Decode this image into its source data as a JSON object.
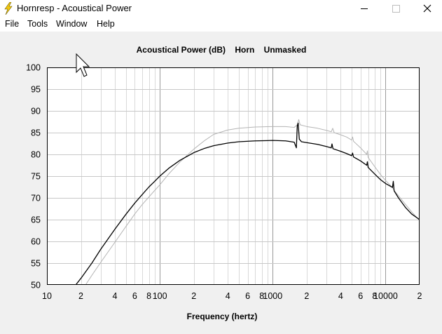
{
  "window": {
    "title": "Hornresp - Acoustical Power",
    "app_icon": "lightning-icon",
    "controls": [
      "minimize-icon",
      "maximize-icon",
      "close-icon"
    ]
  },
  "menu": {
    "items": [
      "File",
      "Tools",
      "Window",
      "Help"
    ]
  },
  "chart_data": {
    "type": "line",
    "title": "Acoustical Power (dB)    Horn    Unmasked",
    "xlabel": "Frequency (hertz)",
    "ylabel": "",
    "xscale": "log",
    "xlim": [
      10,
      20000
    ],
    "ylim": [
      50,
      100
    ],
    "grid": true,
    "x_tick_labels": [
      {
        "value": 10,
        "label": "10"
      },
      {
        "value": 20,
        "label": "2"
      },
      {
        "value": 40,
        "label": "4"
      },
      {
        "value": 60,
        "label": "6"
      },
      {
        "value": 80,
        "label": "8"
      },
      {
        "value": 100,
        "label": "100"
      },
      {
        "value": 200,
        "label": "2"
      },
      {
        "value": 400,
        "label": "4"
      },
      {
        "value": 600,
        "label": "6"
      },
      {
        "value": 800,
        "label": "8"
      },
      {
        "value": 1000,
        "label": "1000"
      },
      {
        "value": 2000,
        "label": "2"
      },
      {
        "value": 4000,
        "label": "4"
      },
      {
        "value": 6000,
        "label": "6"
      },
      {
        "value": 8000,
        "label": "8"
      },
      {
        "value": 10000,
        "label": "10000"
      },
      {
        "value": 20000,
        "label": "2"
      }
    ],
    "y_ticks": [
      50,
      55,
      60,
      65,
      70,
      75,
      80,
      85,
      90,
      95,
      100
    ],
    "series": [
      {
        "color": "#000000",
        "points": [
          [
            18,
            50
          ],
          [
            20,
            51.5
          ],
          [
            25,
            55
          ],
          [
            30,
            58.2
          ],
          [
            40,
            62.8
          ],
          [
            50,
            66.2
          ],
          [
            60,
            68.8
          ],
          [
            70,
            70.8
          ],
          [
            80,
            72.5
          ],
          [
            90,
            73.8
          ],
          [
            100,
            75
          ],
          [
            120,
            76.8
          ],
          [
            150,
            78.6
          ],
          [
            200,
            80.4
          ],
          [
            250,
            81.4
          ],
          [
            300,
            82
          ],
          [
            400,
            82.6
          ],
          [
            500,
            82.9
          ],
          [
            700,
            83.1
          ],
          [
            1000,
            83.2
          ],
          [
            1300,
            83.1
          ],
          [
            1550,
            82.8
          ],
          [
            1620,
            81.5
          ],
          [
            1650,
            86.5
          ],
          [
            1680,
            87.2
          ],
          [
            1720,
            83.5
          ],
          [
            1800,
            82.9
          ],
          [
            2000,
            82.7
          ],
          [
            2500,
            82.3
          ],
          [
            3000,
            81.8
          ],
          [
            3300,
            81.5
          ],
          [
            3350,
            82.4
          ],
          [
            3420,
            81.3
          ],
          [
            4000,
            80.7
          ],
          [
            4500,
            80.2
          ],
          [
            5000,
            79.7
          ],
          [
            5100,
            80.3
          ],
          [
            5200,
            79.4
          ],
          [
            6000,
            78.5
          ],
          [
            6800,
            77.5
          ],
          [
            6900,
            78.3
          ],
          [
            7000,
            77
          ],
          [
            8000,
            75.5
          ],
          [
            9000,
            74.2
          ],
          [
            10000,
            73.3
          ],
          [
            11500,
            72.4
          ],
          [
            11700,
            73.8
          ],
          [
            11900,
            71.6
          ],
          [
            13000,
            70
          ],
          [
            15000,
            67.8
          ],
          [
            17000,
            66.3
          ],
          [
            20000,
            65
          ]
        ]
      },
      {
        "color": "#b4b4b4",
        "points": [
          [
            22,
            50
          ],
          [
            25,
            52.2
          ],
          [
            30,
            55.2
          ],
          [
            40,
            59.8
          ],
          [
            50,
            63.4
          ],
          [
            60,
            66.3
          ],
          [
            70,
            68.5
          ],
          [
            80,
            70.2
          ],
          [
            90,
            71.7
          ],
          [
            100,
            73
          ],
          [
            120,
            75.5
          ],
          [
            150,
            78.2
          ],
          [
            200,
            81.2
          ],
          [
            250,
            83.2
          ],
          [
            300,
            84.6
          ],
          [
            400,
            85.6
          ],
          [
            500,
            86
          ],
          [
            700,
            86.3
          ],
          [
            1000,
            86.4
          ],
          [
            1300,
            86.4
          ],
          [
            1550,
            86.2
          ],
          [
            1650,
            86.8
          ],
          [
            1700,
            88
          ],
          [
            1750,
            86.8
          ],
          [
            2000,
            86.4
          ],
          [
            2500,
            86
          ],
          [
            3000,
            85.5
          ],
          [
            3300,
            85.2
          ],
          [
            3400,
            86
          ],
          [
            3500,
            85
          ],
          [
            4000,
            84.5
          ],
          [
            4500,
            84
          ],
          [
            5000,
            83.3
          ],
          [
            5100,
            84
          ],
          [
            5200,
            83
          ],
          [
            6000,
            81.5
          ],
          [
            6800,
            80
          ],
          [
            6900,
            80.8
          ],
          [
            7000,
            79.3
          ],
          [
            8000,
            77.2
          ],
          [
            9000,
            75.4
          ],
          [
            10000,
            74
          ],
          [
            11500,
            72.4
          ],
          [
            12000,
            71.6
          ],
          [
            13000,
            70.5
          ],
          [
            15000,
            68.5
          ],
          [
            17000,
            66.8
          ],
          [
            20000,
            64.8
          ]
        ]
      }
    ]
  }
}
